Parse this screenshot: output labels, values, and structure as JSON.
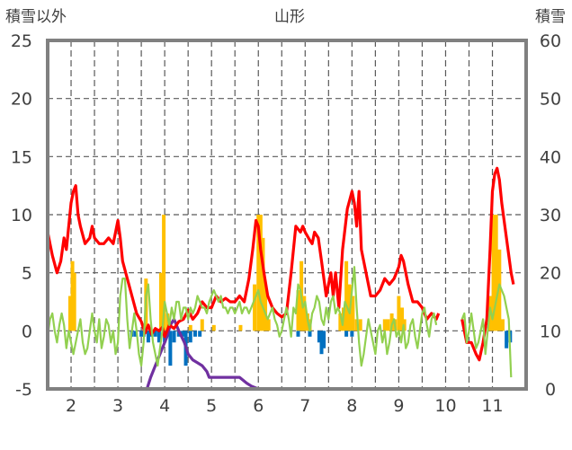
{
  "chart_data": {
    "type": "line",
    "title": "山形",
    "left_axis_label": "積雪以外",
    "right_axis_label": "積雪",
    "ylim_left": [
      -5,
      25
    ],
    "yticks_left": [
      "25",
      "20",
      "15",
      "10",
      "5",
      "0",
      "-5"
    ],
    "ylim_right": [
      0,
      60
    ],
    "yticks_right": [
      "60",
      "50",
      "40",
      "30",
      "20",
      "10",
      "0"
    ],
    "xlim": [
      1.5,
      11.72
    ],
    "xtick_labels": [
      "2",
      "3",
      "4",
      "5",
      "6",
      "7",
      "8",
      "9",
      "10",
      "11"
    ],
    "xtick_values": [
      2,
      3,
      4,
      5,
      6,
      7,
      8,
      9,
      10,
      11
    ],
    "grid": "dashed",
    "series": [
      {
        "axis": "left",
        "kind": "bars",
        "color": "#FFC000",
        "x": [
          1.98,
          2.03,
          2.07,
          3.6,
          3.92,
          3.98,
          4.06,
          4.55,
          4.8,
          5.05,
          5.62,
          5.92,
          6.0,
          6.05,
          6.1,
          6.15,
          6.22,
          6.85,
          6.92,
          6.98,
          7.05,
          7.1,
          7.75,
          7.82,
          7.88,
          7.95,
          8.02,
          8.1,
          8.18,
          8.7,
          8.77,
          8.85,
          8.92,
          9.0,
          9.07,
          9.12,
          10.95,
          11.02,
          11.08,
          11.15,
          11.22
        ],
        "values": [
          3,
          6,
          5,
          4.5,
          5,
          10,
          1.5,
          0.5,
          1,
          0.5,
          0.5,
          4,
          10,
          10,
          8,
          4,
          1,
          3.5,
          6,
          3,
          1.5,
          1,
          1.5,
          2,
          6,
          4,
          3,
          1,
          1,
          1,
          1,
          1.5,
          1,
          3,
          2,
          1,
          3,
          10,
          10,
          7,
          1
        ]
      },
      {
        "axis": "left",
        "kind": "bars",
        "color": "#0070C0",
        "x": [
          3.3,
          3.38,
          3.5,
          3.55,
          3.65,
          3.72,
          3.8,
          3.88,
          4.0,
          4.12,
          4.2,
          4.3,
          4.38,
          4.45,
          4.55,
          4.65,
          4.75,
          6.85,
          7.1,
          7.3,
          7.35,
          7.4,
          7.88,
          8.0,
          11.3,
          11.38
        ],
        "values": [
          -0.5,
          -0.5,
          -0.5,
          -0.5,
          -1,
          -0.5,
          -0.5,
          -1,
          -1,
          -3,
          -1,
          -0.5,
          -0.5,
          -3,
          -1,
          -0.5,
          -0.5,
          -0.5,
          -0.5,
          -1,
          -2,
          -1.5,
          -0.5,
          -0.5,
          -1.5,
          -1
        ]
      },
      {
        "axis": "right",
        "kind": "line",
        "color": "#7030A0",
        "x": [
          1.5,
          3.62,
          3.7,
          3.8,
          3.9,
          4.0,
          4.05,
          4.12,
          4.2,
          4.3,
          4.42,
          4.5,
          4.6,
          4.7,
          4.8,
          4.9,
          4.95,
          5.05,
          5.5,
          5.6,
          5.75,
          5.85,
          6.0,
          10.35,
          10.45,
          11.72
        ],
        "values": [
          0,
          0,
          2,
          4,
          6,
          8,
          9,
          11,
          12,
          10,
          8,
          6,
          5,
          4.5,
          4,
          3,
          2,
          2,
          2,
          2,
          1,
          0.5,
          0,
          0,
          0,
          0
        ]
      },
      {
        "axis": "left",
        "kind": "line",
        "color": "#FF0000",
        "x": [
          1.5,
          1.6,
          1.7,
          1.78,
          1.85,
          1.9,
          1.95,
          2.0,
          2.05,
          2.1,
          2.15,
          2.2,
          2.3,
          2.4,
          2.45,
          2.5,
          2.6,
          2.7,
          2.8,
          2.9,
          3.0,
          3.05,
          3.1,
          3.2,
          3.3,
          3.4,
          3.5,
          3.58,
          3.65,
          3.72,
          3.8,
          3.88,
          3.95,
          4.0,
          4.1,
          4.2,
          4.3,
          4.4,
          4.5,
          4.6,
          4.7,
          4.8,
          4.9,
          5.0,
          5.1,
          5.2,
          5.3,
          5.4,
          5.5,
          5.6,
          5.7,
          5.8,
          5.88,
          5.95,
          6.0,
          6.05,
          6.12,
          6.2,
          6.3,
          6.4,
          6.5,
          6.6,
          6.7,
          6.8,
          6.9,
          6.95,
          7.0,
          7.1,
          7.15,
          7.2,
          7.28,
          7.35,
          7.45,
          7.55,
          7.6,
          7.65,
          7.72,
          7.8,
          7.9,
          8.0,
          8.05,
          8.1,
          8.15,
          8.2,
          8.3,
          8.4,
          8.5,
          8.6,
          8.7,
          8.8,
          8.9,
          9.0,
          9.05,
          9.1,
          9.2,
          9.3,
          9.4,
          9.5,
          9.6,
          9.7,
          9.8,
          9.85
        ],
        "values": [
          8.5,
          6.5,
          5,
          6,
          8,
          7,
          9,
          11,
          12,
          12.5,
          10,
          9,
          7.5,
          8,
          9,
          8,
          7.5,
          7.5,
          8,
          7.5,
          9.5,
          8,
          6,
          4.5,
          3,
          1.5,
          0.8,
          -0.2,
          0.5,
          -0.3,
          0.2,
          0,
          0.3,
          -0.5,
          0.5,
          0.2,
          0.8,
          1,
          1.8,
          1,
          1.5,
          2.5,
          2,
          2,
          3,
          2.5,
          2.8,
          2.5,
          2.5,
          3,
          2.5,
          4.5,
          7,
          9.5,
          9,
          7,
          5,
          3,
          2,
          1.5,
          1.2,
          1.5,
          5,
          9,
          8.5,
          9,
          8.5,
          7.8,
          7.5,
          8.5,
          8,
          6,
          3,
          5,
          3,
          5,
          2,
          7,
          10.5,
          12,
          11,
          9,
          12,
          7,
          5,
          3,
          3,
          3.5,
          4.5,
          4,
          4.5,
          5.5,
          6.5,
          6,
          4,
          2.5,
          2.5,
          2,
          1,
          1.5,
          1,
          1.5
        ]
      },
      {
        "axis": "left",
        "kind": "line",
        "color": "#FF0000",
        "x": [
          10.35,
          10.45,
          10.55,
          10.65,
          10.72,
          10.8,
          10.88,
          10.95,
          11.0,
          11.05,
          11.1,
          11.15,
          11.2,
          11.3,
          11.4,
          11.45
        ],
        "values": [
          1,
          -1,
          -1,
          -2,
          -2.5,
          -1,
          1,
          7,
          12,
          13.5,
          14,
          13,
          11,
          8,
          5,
          4
        ]
      },
      {
        "axis": "left",
        "kind": "line",
        "color": "#92D050",
        "x": [
          1.5,
          1.55,
          1.6,
          1.65,
          1.7,
          1.75,
          1.8,
          1.85,
          1.9,
          1.95,
          2.0,
          2.05,
          2.1,
          2.15,
          2.2,
          2.25,
          2.3,
          2.35,
          2.4,
          2.45,
          2.5,
          2.55,
          2.6,
          2.65,
          2.7,
          2.75,
          2.8,
          2.85,
          2.9,
          2.95,
          3.0,
          3.05,
          3.1,
          3.15,
          3.2,
          3.25,
          3.3,
          3.35,
          3.4,
          3.45,
          3.5,
          3.55,
          3.6,
          3.65,
          3.7,
          3.75,
          3.8,
          3.85,
          3.9,
          3.95,
          4.0,
          4.05,
          4.1,
          4.15,
          4.2,
          4.25,
          4.3,
          4.35,
          4.4,
          4.45,
          4.5,
          4.55,
          4.6,
          4.65,
          4.7,
          4.75,
          4.8,
          4.85,
          4.9,
          4.95,
          5.0,
          5.05,
          5.1,
          5.15,
          5.2,
          5.25,
          5.3,
          5.35,
          5.4,
          5.45,
          5.5,
          5.55,
          5.6,
          5.65,
          5.7,
          5.75,
          5.8,
          5.85,
          5.9,
          5.95,
          6.0,
          6.05,
          6.1,
          6.15,
          6.2,
          6.25,
          6.3,
          6.35,
          6.4,
          6.45,
          6.5,
          6.55,
          6.6,
          6.65,
          6.7,
          6.75,
          6.8,
          6.85,
          6.9,
          6.95,
          7.0,
          7.05,
          7.1,
          7.15,
          7.2,
          7.25,
          7.3,
          7.35,
          7.4,
          7.45,
          7.5,
          7.55,
          7.6,
          7.65,
          7.7,
          7.75,
          7.8,
          7.85,
          7.9,
          7.95,
          8.0,
          8.05,
          8.1,
          8.15,
          8.2,
          8.25,
          8.3,
          8.35,
          8.4,
          8.45,
          8.5,
          8.55,
          8.6,
          8.65,
          8.7,
          8.75,
          8.8,
          8.85,
          8.9,
          8.95,
          9.0,
          9.05,
          9.1,
          9.15,
          9.2,
          9.25,
          9.3,
          9.35,
          9.4,
          9.45,
          9.5,
          9.55,
          9.6,
          9.65,
          9.7,
          9.75,
          9.8
        ],
        "values": [
          -0.5,
          1,
          1.5,
          0,
          -1,
          0.5,
          1.5,
          0.5,
          -1.5,
          0,
          -1,
          -2,
          -1,
          0,
          1,
          -1,
          -2,
          -1.5,
          0,
          1.5,
          0,
          -1,
          1,
          -1.5,
          -0.5,
          1,
          0.5,
          -1,
          0,
          -2,
          -1,
          3,
          4.5,
          4.5,
          1,
          -1.5,
          0,
          1.5,
          0,
          -2,
          -3,
          -1,
          3,
          4,
          1,
          -1,
          -2,
          -3,
          -1.5,
          0,
          2.5,
          1.5,
          0.5,
          2,
          1,
          2.5,
          2.5,
          1,
          2,
          2,
          1,
          2,
          1.5,
          2,
          3,
          2.5,
          2,
          2,
          1.5,
          2.5,
          3,
          3.5,
          3,
          2.5,
          3,
          2,
          2,
          1.5,
          2,
          2,
          1.5,
          2,
          2.5,
          1.5,
          2,
          2,
          1.5,
          2,
          2.5,
          3,
          3.5,
          2.5,
          2,
          1.5,
          1,
          1.5,
          2,
          1,
          0.5,
          -0.5,
          0,
          1,
          2,
          1,
          -0.5,
          2,
          1.5,
          4,
          3.5,
          2,
          2.5,
          1,
          0,
          1.5,
          2,
          3,
          2.5,
          1,
          0.5,
          2,
          1,
          2.5,
          3,
          1.5,
          2,
          1.5,
          0.5,
          2.5,
          2,
          1.5,
          3.5,
          5.5,
          2,
          -1,
          -3,
          -2,
          -0.5,
          1,
          0,
          -1,
          -2,
          0,
          0.5,
          -1,
          0,
          -2,
          -1,
          0.5,
          1,
          -0.5,
          0,
          -1,
          0.5,
          -1.5,
          -1,
          0.5,
          1,
          -0.5,
          -1.5,
          0,
          1.5,
          2,
          0.5,
          -0.5,
          1,
          1.5,
          0.5
        ]
      },
      {
        "axis": "left",
        "kind": "line",
        "color": "#92D050",
        "x": [
          10.35,
          10.4,
          10.45,
          10.5,
          10.55,
          10.6,
          10.65,
          10.7,
          10.75,
          10.8,
          10.85,
          10.9,
          10.95,
          11.0,
          11.05,
          11.1,
          11.15,
          11.2,
          11.25,
          11.3,
          11.35,
          11.4
        ],
        "values": [
          1,
          1.5,
          -1,
          0,
          1.5,
          0,
          -1.5,
          -1,
          0,
          1,
          -2,
          0,
          2,
          1,
          2,
          3,
          4,
          3.5,
          3,
          2,
          1,
          -4
        ]
      }
    ]
  }
}
